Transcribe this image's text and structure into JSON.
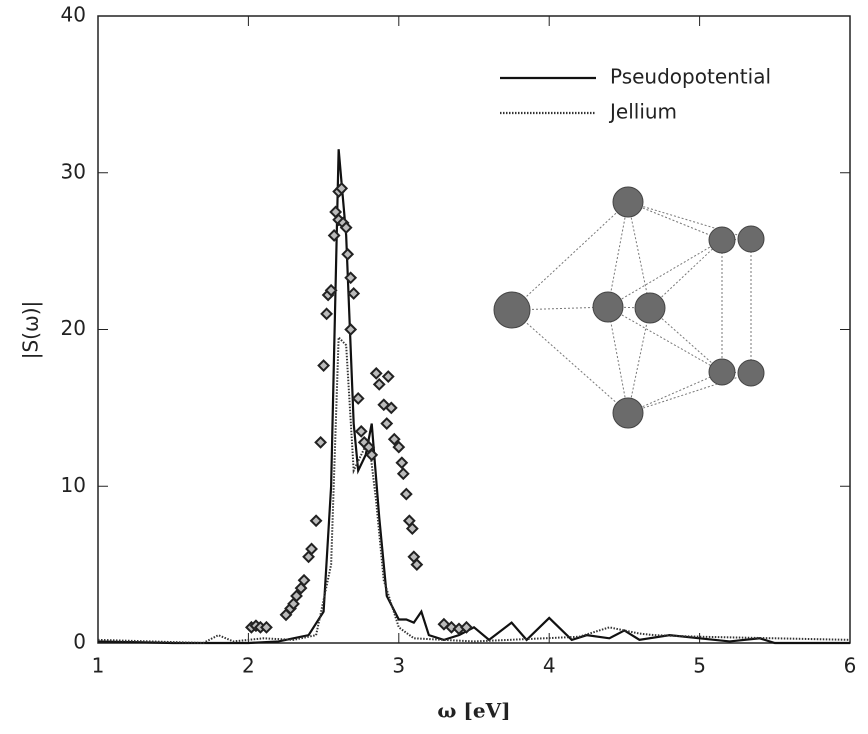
{
  "chart_data": {
    "type": "line",
    "xlabel": "ω [eV]",
    "ylabel": "|S(ω)|",
    "xlim": [
      1,
      6
    ],
    "ylim": [
      0,
      40
    ],
    "xticks": [
      1,
      2,
      3,
      4,
      5,
      6
    ],
    "yticks": [
      0,
      10,
      20,
      30,
      40
    ],
    "legend": "upper right",
    "series": [
      {
        "name": "Pseudopotential",
        "style": "solid",
        "color": "#111111",
        "x": [
          1.0,
          1.5,
          2.0,
          2.2,
          2.4,
          2.5,
          2.55,
          2.6,
          2.65,
          2.7,
          2.73,
          2.78,
          2.82,
          2.87,
          2.92,
          3.0,
          3.05,
          3.1,
          3.15,
          3.2,
          3.3,
          3.4,
          3.5,
          3.6,
          3.75,
          3.85,
          4.0,
          4.15,
          4.25,
          4.4,
          4.5,
          4.6,
          4.8,
          5.0,
          5.2,
          5.4,
          5.5,
          6.0
        ],
        "values": [
          0.1,
          0,
          0,
          0.1,
          0.5,
          2,
          10,
          31.5,
          26,
          14,
          11,
          12,
          14,
          8,
          3,
          1.5,
          1.5,
          1.3,
          2,
          0.5,
          0.2,
          0.5,
          1.0,
          0.2,
          1.3,
          0.2,
          1.6,
          0.2,
          0.5,
          0.3,
          0.8,
          0.2,
          0.5,
          0.3,
          0.1,
          0.3,
          0,
          0
        ]
      },
      {
        "name": "Jellium",
        "style": "dotted",
        "color": "#333333",
        "x": [
          1.0,
          1.7,
          1.8,
          1.9,
          2.1,
          2.3,
          2.45,
          2.55,
          2.6,
          2.65,
          2.7,
          2.75,
          2.8,
          2.85,
          2.9,
          3.0,
          3.1,
          3.5,
          4.2,
          4.4,
          4.6,
          4.7,
          5.0,
          6.0
        ],
        "values": [
          0.2,
          0,
          0.5,
          0.1,
          0.3,
          0.2,
          0.5,
          5,
          19.5,
          19,
          11,
          12,
          13,
          9,
          4,
          1,
          0.3,
          0.1,
          0.4,
          1.0,
          0.6,
          0.5,
          0.4,
          0.2
        ]
      },
      {
        "style": "diamond",
        "color": "#222222",
        "x": [
          2.02,
          2.05,
          2.08,
          2.12,
          2.25,
          2.28,
          2.3,
          2.32,
          2.35,
          2.37,
          2.4,
          2.42,
          2.45,
          2.48,
          2.5,
          2.52,
          2.53,
          2.55,
          2.57,
          2.58,
          2.6,
          2.62,
          2.6,
          2.63,
          2.65,
          2.66,
          2.68,
          2.68,
          2.7,
          2.73,
          2.75,
          2.77,
          2.8,
          2.82,
          2.85,
          2.87,
          2.9,
          2.92,
          2.93,
          2.95,
          2.97,
          3.0,
          3.02,
          3.03,
          3.05,
          3.07,
          3.09,
          3.1,
          3.12,
          3.3,
          3.35,
          3.4,
          3.45
        ],
        "values": [
          1.0,
          1.1,
          1.0,
          1.0,
          1.8,
          2.2,
          2.5,
          3.0,
          3.5,
          4.0,
          5.5,
          6.0,
          7.8,
          12.8,
          17.7,
          21.0,
          22.2,
          22.5,
          26,
          27.5,
          28.8,
          29,
          27,
          26.8,
          26.5,
          24.8,
          23.3,
          20,
          22.3,
          15.6,
          13.5,
          12.8,
          12.5,
          12,
          17.2,
          16.5,
          15.2,
          14,
          17,
          15,
          13,
          12.5,
          11.5,
          10.8,
          9.5,
          7.8,
          7.3,
          5.5,
          5.0,
          1.2,
          1.0,
          0.9,
          1.0
        ]
      }
    ]
  }
}
